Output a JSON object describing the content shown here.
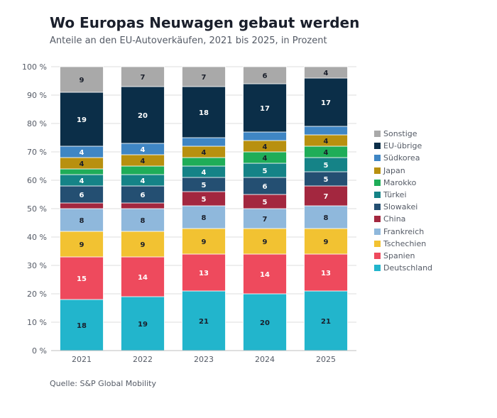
{
  "title": "Wo Europas Neuwagen gebaut werden",
  "subtitle": "Anteile an den EU-Autoverkäufen, 2021 bis 2025, in Prozent",
  "source": "Quelle: S&P Global Mobility",
  "chart_data": {
    "type": "bar",
    "stacked": true,
    "categories": [
      "2021",
      "2022",
      "2023",
      "2024",
      "2025"
    ],
    "ylim": [
      0,
      100
    ],
    "yticks": [
      "0 %",
      "10 %",
      "20 %",
      "30 %",
      "40 %",
      "50 %",
      "60 %",
      "70 %",
      "80 %",
      "90 %",
      "100 %"
    ],
    "grid": true,
    "legend_position": "right",
    "series": [
      {
        "name": "Deutschland",
        "color": "#22b5cc",
        "label_color": "#1a1f2b",
        "values": [
          18,
          19,
          21,
          20,
          21
        ]
      },
      {
        "name": "Spanien",
        "color": "#ee4a5d",
        "label_color": "#ffffff",
        "values": [
          15,
          14,
          13,
          14,
          13
        ]
      },
      {
        "name": "Tschechien",
        "color": "#f2c232",
        "label_color": "#1a1f2b",
        "values": [
          9,
          9,
          9,
          9,
          9
        ]
      },
      {
        "name": "Frankreich",
        "color": "#8fb8dc",
        "label_color": "#1a1f2b",
        "values": [
          8,
          8,
          8,
          7,
          8
        ]
      },
      {
        "name": "China",
        "color": "#a3273f",
        "label_color": "#ffffff",
        "values": [
          2,
          2,
          5,
          5,
          7
        ],
        "labels": [
          null,
          null,
          "5",
          "5",
          "7"
        ]
      },
      {
        "name": "Slowakei",
        "color": "#244f72",
        "label_color": "#ffffff",
        "values": [
          6,
          6,
          5,
          6,
          5
        ]
      },
      {
        "name": "Türkei",
        "color": "#158387",
        "label_color": "#ffffff",
        "values": [
          4,
          4,
          4,
          5,
          5
        ]
      },
      {
        "name": "Marokko",
        "color": "#1fad58",
        "label_color": "#1a1f2b",
        "values": [
          2,
          3,
          3,
          4,
          4
        ],
        "labels": [
          null,
          null,
          null,
          "4",
          "4"
        ]
      },
      {
        "name": "Japan",
        "color": "#b8900f",
        "label_color": "#1a1f2b",
        "values": [
          4,
          4,
          4,
          4,
          4
        ]
      },
      {
        "name": "Südkorea",
        "color": "#3f86c4",
        "label_color": "#ffffff",
        "values": [
          4,
          4,
          3,
          3,
          3
        ],
        "labels": [
          "4",
          "4",
          null,
          null,
          null
        ]
      },
      {
        "name": "EU-übrige",
        "color": "#0b2e48",
        "label_color": "#ffffff",
        "values": [
          19,
          20,
          18,
          17,
          17
        ]
      },
      {
        "name": "Sonstige",
        "color": "#a9a9a9",
        "label_color": "#1a1f2b",
        "values": [
          9,
          7,
          7,
          6,
          4
        ]
      }
    ]
  }
}
